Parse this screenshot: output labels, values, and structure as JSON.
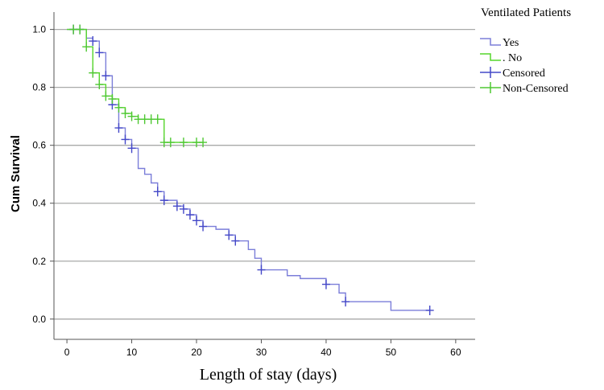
{
  "chart_data": {
    "type": "line",
    "subtype": "kaplan-meier survival curve",
    "title": "",
    "xlabel": "Length of stay (days)",
    "ylabel": "Cum Survival",
    "xlim": [
      -2,
      63
    ],
    "ylim": [
      -0.07,
      1.06
    ],
    "xticks": [
      0,
      10,
      20,
      30,
      40,
      50,
      60
    ],
    "yticks": [
      0.0,
      0.2,
      0.4,
      0.6,
      0.8,
      1.0
    ],
    "ytick_labels": [
      "0.0",
      "0.2",
      "0.4",
      "0.6",
      "0.8",
      "1.0"
    ],
    "grid": "horizontal",
    "legend": {
      "title": "Ventilated Patients",
      "position": "top-right",
      "entries": [
        {
          "label": "Yes",
          "symbol": "step-line",
          "color": "#7b7ed9"
        },
        {
          "label": ". No",
          "symbol": "step-line",
          "color": "#55d52b"
        },
        {
          "label": "Censored",
          "symbol": "plus",
          "color": "#4448c8"
        },
        {
          "label": "Non-Censored",
          "symbol": "plus",
          "color": "#4ec832"
        }
      ]
    },
    "series": [
      {
        "name": "Yes",
        "color": "#7b7ed9",
        "censor_color": "#4448c8",
        "steps": [
          [
            0,
            1.0
          ],
          [
            3,
            0.97
          ],
          [
            4,
            0.96
          ],
          [
            5,
            0.92
          ],
          [
            6,
            0.84
          ],
          [
            7,
            0.74
          ],
          [
            8,
            0.66
          ],
          [
            9,
            0.62
          ],
          [
            10,
            0.59
          ],
          [
            11,
            0.52
          ],
          [
            12,
            0.5
          ],
          [
            13,
            0.47
          ],
          [
            14,
            0.44
          ],
          [
            15,
            0.41
          ],
          [
            17,
            0.39
          ],
          [
            18,
            0.38
          ],
          [
            19,
            0.36
          ],
          [
            20,
            0.34
          ],
          [
            21,
            0.32
          ],
          [
            23,
            0.31
          ],
          [
            25,
            0.29
          ],
          [
            26,
            0.27
          ],
          [
            28,
            0.24
          ],
          [
            29,
            0.21
          ],
          [
            30,
            0.17
          ],
          [
            33,
            0.17
          ],
          [
            34,
            0.15
          ],
          [
            36,
            0.14
          ],
          [
            40,
            0.12
          ],
          [
            42,
            0.09
          ],
          [
            43,
            0.06
          ],
          [
            50,
            0.03
          ],
          [
            56,
            0.03
          ]
        ],
        "censored": [
          [
            1,
            1.0
          ],
          [
            2,
            1.0
          ],
          [
            4,
            0.96
          ],
          [
            5,
            0.92
          ],
          [
            6,
            0.84
          ],
          [
            7,
            0.74
          ],
          [
            8,
            0.66
          ],
          [
            9,
            0.62
          ],
          [
            10,
            0.59
          ],
          [
            14,
            0.44
          ],
          [
            15,
            0.41
          ],
          [
            17,
            0.39
          ],
          [
            18,
            0.38
          ],
          [
            19,
            0.36
          ],
          [
            20,
            0.34
          ],
          [
            21,
            0.32
          ],
          [
            25,
            0.29
          ],
          [
            26,
            0.27
          ],
          [
            30,
            0.17
          ],
          [
            40,
            0.12
          ],
          [
            43,
            0.06
          ],
          [
            56,
            0.03
          ]
        ]
      },
      {
        "name": ". No",
        "color": "#55d52b",
        "censor_color": "#4ec832",
        "steps": [
          [
            0,
            1.0
          ],
          [
            3,
            0.94
          ],
          [
            4,
            0.85
          ],
          [
            5,
            0.81
          ],
          [
            6,
            0.77
          ],
          [
            7,
            0.76
          ],
          [
            8,
            0.73
          ],
          [
            9,
            0.71
          ],
          [
            10,
            0.7
          ],
          [
            11,
            0.69
          ],
          [
            15,
            0.61
          ],
          [
            21,
            0.61
          ]
        ],
        "censored": [
          [
            1,
            1.0
          ],
          [
            2,
            1.0
          ],
          [
            3,
            0.94
          ],
          [
            4,
            0.85
          ],
          [
            5,
            0.81
          ],
          [
            6,
            0.77
          ],
          [
            7,
            0.76
          ],
          [
            8,
            0.73
          ],
          [
            9,
            0.71
          ],
          [
            10,
            0.7
          ],
          [
            11,
            0.69
          ],
          [
            12,
            0.69
          ],
          [
            13,
            0.69
          ],
          [
            14,
            0.69
          ],
          [
            15,
            0.61
          ],
          [
            16,
            0.61
          ],
          [
            18,
            0.61
          ],
          [
            20,
            0.61
          ],
          [
            21,
            0.61
          ]
        ]
      }
    ]
  }
}
